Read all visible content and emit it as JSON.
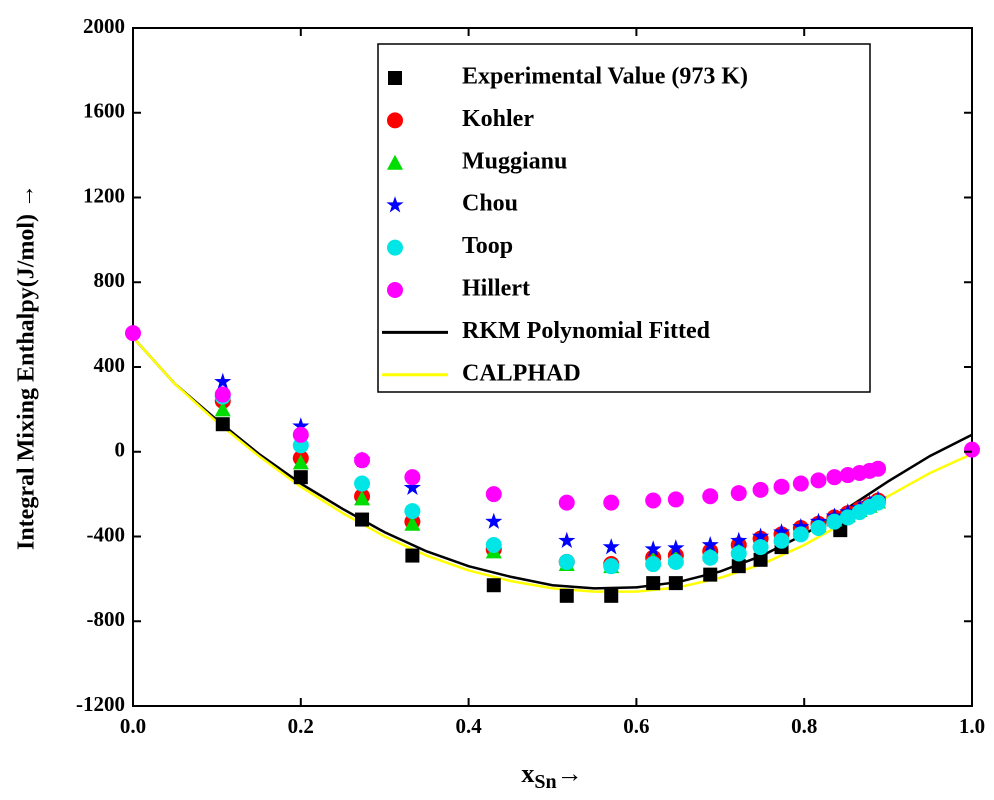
{
  "chart_data": {
    "type": "scatter",
    "y_label": "Integral Mixing Enthalpy(J/mol) →",
    "x_label_parts": [
      "x",
      "Sn",
      "→"
    ],
    "xlim": [
      0,
      1
    ],
    "ylim": [
      -1200,
      2000
    ],
    "xticks": [
      {
        "value": 0,
        "label": "0.0"
      },
      {
        "value": 0.2,
        "label": "0.2"
      },
      {
        "value": 0.4,
        "label": "0.4"
      },
      {
        "value": 0.6,
        "label": "0.6"
      },
      {
        "value": 0.8,
        "label": "0.8"
      },
      {
        "value": 1,
        "label": "1.0"
      }
    ],
    "yticks": [
      -1200,
      -800,
      -400,
      0,
      400,
      800,
      1200,
      1600,
      2000
    ],
    "series": [
      {
        "name": "Experimental Value (973 K)",
        "color": "#000000",
        "marker": "square",
        "x": [
          0.107,
          0.2,
          0.273,
          0.333,
          0.43,
          0.517,
          0.57,
          0.62,
          0.647,
          0.688,
          0.722,
          0.748,
          0.773,
          0.843
        ],
        "values": [
          130,
          -120,
          -320,
          -490,
          -630,
          -680,
          -680,
          -620,
          -620,
          -580,
          -540,
          -510,
          -450,
          -370
        ]
      },
      {
        "name": "Kohler",
        "color": "#ff0000",
        "marker": "circle",
        "x": [
          0.107,
          0.2,
          0.273,
          0.333,
          0.43,
          0.517,
          0.57,
          0.62,
          0.647,
          0.688,
          0.722,
          0.748,
          0.773,
          0.796,
          0.817,
          0.836,
          0.852,
          0.866,
          0.878,
          0.888
        ],
        "values": [
          240,
          -30,
          -210,
          -330,
          -460,
          -520,
          -530,
          -500,
          -490,
          -470,
          -440,
          -410,
          -390,
          -360,
          -340,
          -310,
          -290,
          -270,
          -250,
          -230
        ]
      },
      {
        "name": "Muggianu",
        "color": "#00dd00",
        "marker": "triangle",
        "x": [
          0.107,
          0.2,
          0.273,
          0.333,
          0.43,
          0.517,
          0.57,
          0.62,
          0.647,
          0.688,
          0.722,
          0.748,
          0.773,
          0.796,
          0.817,
          0.836,
          0.852,
          0.866,
          0.878,
          0.888
        ],
        "values": [
          200,
          -50,
          -220,
          -340,
          -470,
          -530,
          -540,
          -510,
          -500,
          -480,
          -450,
          -420,
          -400,
          -370,
          -345,
          -320,
          -300,
          -275,
          -255,
          -235
        ]
      },
      {
        "name": "Chou",
        "color": "#0000ff",
        "marker": "star",
        "x": [
          0.107,
          0.2,
          0.273,
          0.333,
          0.43,
          0.517,
          0.57,
          0.62,
          0.647,
          0.688,
          0.722,
          0.748,
          0.773,
          0.796,
          0.817,
          0.836,
          0.852,
          0.866,
          0.878,
          0.888
        ],
        "values": [
          330,
          120,
          -40,
          -170,
          -330,
          -420,
          -450,
          -460,
          -455,
          -440,
          -420,
          -400,
          -380,
          -355,
          -330,
          -305,
          -285,
          -265,
          -245,
          -225
        ]
      },
      {
        "name": "Toop",
        "color": "#00e5e5",
        "marker": "circle",
        "x": [
          0.107,
          0.2,
          0.273,
          0.333,
          0.43,
          0.517,
          0.57,
          0.62,
          0.647,
          0.688,
          0.722,
          0.748,
          0.773,
          0.796,
          0.817,
          0.836,
          0.852,
          0.866,
          0.878,
          0.888
        ],
        "values": [
          260,
          30,
          -150,
          -280,
          -440,
          -520,
          -540,
          -530,
          -520,
          -500,
          -480,
          -450,
          -420,
          -390,
          -360,
          -330,
          -310,
          -285,
          -260,
          -240
        ]
      },
      {
        "name": "Hillert",
        "color": "#ff00ff",
        "marker": "circle",
        "x": [
          0,
          0.107,
          0.2,
          0.273,
          0.333,
          0.43,
          0.517,
          0.57,
          0.62,
          0.647,
          0.688,
          0.722,
          0.748,
          0.773,
          0.796,
          0.817,
          0.836,
          0.852,
          0.866,
          0.878,
          0.888,
          1
        ],
        "values": [
          560,
          270,
          80,
          -40,
          -120,
          -200,
          -240,
          -240,
          -230,
          -225,
          -210,
          -195,
          -180,
          -165,
          -150,
          -135,
          -120,
          -110,
          -100,
          -90,
          -80,
          10
        ]
      },
      {
        "name": "RKM Polynomial Fitted",
        "color": "#000000",
        "marker": "line",
        "x": [
          0,
          0.05,
          0.1,
          0.15,
          0.2,
          0.25,
          0.3,
          0.35,
          0.4,
          0.45,
          0.5,
          0.55,
          0.6,
          0.65,
          0.7,
          0.75,
          0.8,
          0.85,
          0.9,
          0.95,
          1
        ],
        "values": [
          540,
          320,
          150,
          -10,
          -150,
          -270,
          -380,
          -470,
          -540,
          -590,
          -630,
          -645,
          -640,
          -615,
          -565,
          -490,
          -390,
          -270,
          -140,
          -20,
          80
        ]
      },
      {
        "name": "CALPHAD",
        "color": "#ffff00",
        "marker": "line",
        "x": [
          0,
          0.05,
          0.1,
          0.15,
          0.2,
          0.25,
          0.3,
          0.35,
          0.4,
          0.45,
          0.5,
          0.55,
          0.6,
          0.65,
          0.7,
          0.75,
          0.8,
          0.85,
          0.9,
          0.95,
          1
        ],
        "values": [
          540,
          320,
          140,
          -20,
          -165,
          -290,
          -400,
          -490,
          -560,
          -610,
          -645,
          -660,
          -660,
          -640,
          -595,
          -530,
          -440,
          -330,
          -210,
          -100,
          -10
        ]
      }
    ]
  }
}
